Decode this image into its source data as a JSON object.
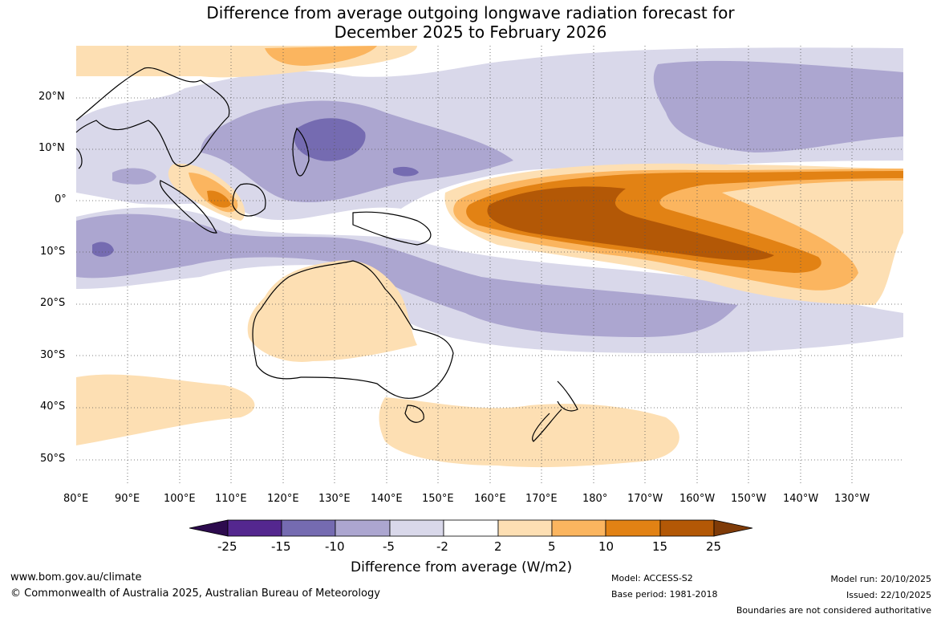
{
  "title": {
    "line1": "Difference from average outgoing longwave radiation forecast for",
    "line2": "December 2025 to February 2026"
  },
  "map": {
    "lat_labels": [
      "20°N",
      "10°N",
      "0°",
      "10°S",
      "20°S",
      "30°S",
      "40°S",
      "50°S"
    ],
    "lon_labels": [
      "80°E",
      "90°E",
      "100°E",
      "110°E",
      "120°E",
      "130°E",
      "140°E",
      "150°E",
      "160°E",
      "170°E",
      "180°",
      "170°W",
      "160°W",
      "150°W",
      "140°W",
      "130°W"
    ]
  },
  "colorbar": {
    "ticks": [
      "-25",
      "-15",
      "-10",
      "-5",
      "-2",
      "2",
      "5",
      "10",
      "15",
      "25"
    ],
    "colors": [
      "#2d0b4e",
      "#54278f",
      "#756bb1",
      "#aca6d0",
      "#d9d8ea",
      "#ffffff",
      "#fddfb3",
      "#fbb55f",
      "#e28214",
      "#b35806",
      "#7f3b08"
    ],
    "label": "Difference from average (W/m2)"
  },
  "footer": {
    "website": "www.bom.gov.au/climate",
    "copyright": "© Commonwealth of Australia 2025, Australian Bureau of Meteorology",
    "model": "Model: ACCESS-S2",
    "base_period": "Base period: 1981-2018",
    "model_run": "Model run: 20/10/2025",
    "issued": "Issued: 22/10/2025",
    "disclaimer": "Boundaries are not considered authoritative"
  }
}
